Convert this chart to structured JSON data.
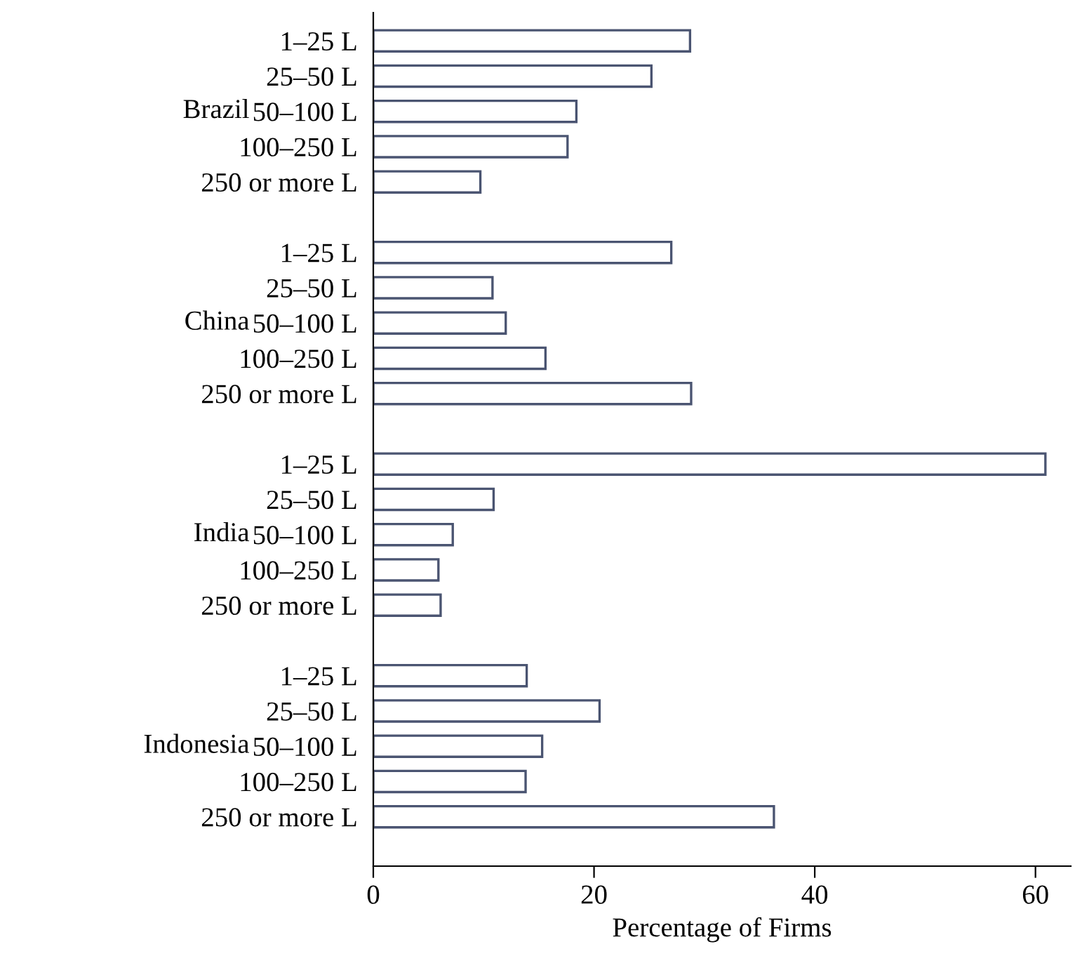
{
  "chart_data": {
    "type": "bar",
    "orientation": "horizontal",
    "xlabel": "Percentage of Firms",
    "categories": [
      "1–25 L",
      "25–50 L",
      "50–100 L",
      "100–250 L",
      "250 or more L",
      null,
      "1–25 L",
      "25–50 L",
      "50–100 L",
      "100–250 L",
      "250 or more L",
      null,
      "1–25 L",
      "25–50 L",
      "50–100 L",
      "100–250 L",
      "250 or more L",
      null,
      "1–25 L",
      "25–50 L",
      "50–100 L",
      "100–250 L",
      "250 or more L"
    ],
    "values": [
      28.7,
      25.2,
      18.4,
      17.6,
      9.7,
      null,
      27.0,
      10.8,
      12.0,
      15.6,
      28.8,
      null,
      60.9,
      10.9,
      7.2,
      5.9,
      6.1,
      null,
      13.9,
      20.5,
      15.3,
      13.8,
      36.3
    ],
    "color": "#4a5471",
    "annotations": [
      "Brazil",
      "China",
      "India",
      "Indonesia"
    ],
    "xlim": [
      0,
      63.2
    ],
    "xticks": [
      0,
      20,
      40,
      60
    ],
    "grid": false,
    "legend": false
  }
}
